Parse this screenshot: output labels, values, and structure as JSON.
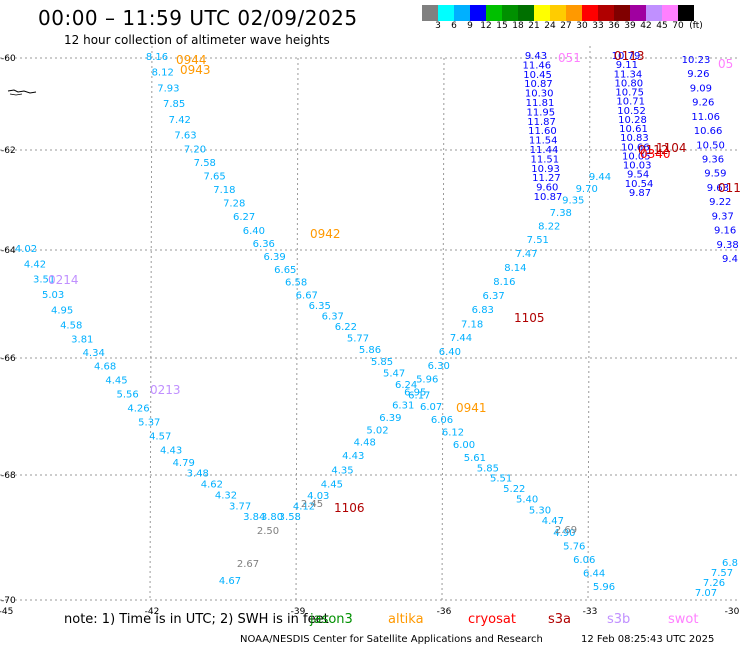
{
  "title": "00:00 – 11:59 UTC 02/09/2025",
  "subtitle": "12 hour collection of altimeter wave heights",
  "colorbar": {
    "unit": "(ft)",
    "colors": [
      "#808080",
      "#00ffff",
      "#00b0ff",
      "#0000ff",
      "#00c000",
      "#009000",
      "#007000",
      "#ffff00",
      "#ffcc00",
      "#ff9900",
      "#ff0000",
      "#b00000",
      "#800000",
      "#a000a0",
      "#c090ff",
      "#ff80ff",
      "#000000"
    ],
    "labels": [
      "3",
      "6",
      "9",
      "12",
      "15",
      "18",
      "21",
      "24",
      "27",
      "30",
      "33",
      "36",
      "39",
      "42",
      "45",
      "70"
    ]
  },
  "note": "note:  1) Time is in UTC; 2) SWH is in feet",
  "satellites": [
    {
      "name": "jason3",
      "color": "#009000"
    },
    {
      "name": "altika",
      "color": "#ff9900"
    },
    {
      "name": "cryosat",
      "color": "#ff0000"
    },
    {
      "name": "s3a",
      "color": "#b00000"
    },
    {
      "name": "s3b",
      "color": "#c090ff"
    },
    {
      "name": "swot",
      "color": "#ff80ff"
    }
  ],
  "footer": "NOAA/NESDIS Center for Satellite Applications and Research",
  "generated": "12 Feb 08:25:43 UTC 2025",
  "map": {
    "lon_labels": [
      "-45",
      "-42",
      "-39",
      "-36",
      "-33",
      "-30"
    ],
    "lat_labels": [
      "-60",
      "-62",
      "-64",
      "-66",
      "-68",
      "-70"
    ],
    "lon_range": [
      -45,
      -30
    ],
    "lat_range": [
      -60,
      -70
    ]
  },
  "time_labels": [
    {
      "text": "0944",
      "color": "#ff9900"
    },
    {
      "text": "0943",
      "color": "#ff9900"
    },
    {
      "text": "0942",
      "color": "#ff9900"
    },
    {
      "text": "0941",
      "color": "#ff9900"
    },
    {
      "text": "0214",
      "color": "#c090ff"
    },
    {
      "text": "0213",
      "color": "#c090ff"
    },
    {
      "text": "1105",
      "color": "#b00000"
    },
    {
      "text": "1106",
      "color": "#b00000"
    },
    {
      "text": "0113",
      "color": "#b00000"
    },
    {
      "text": "0112",
      "color": "#b00000"
    },
    {
      "text": "011",
      "color": "#b00000"
    },
    {
      "text": "0340",
      "color": "#ff0000"
    },
    {
      "text": "1104",
      "color": "#b00000"
    },
    {
      "text": "051",
      "color": "#ff80ff"
    },
    {
      "text": "05",
      "color": "#ff80ff"
    }
  ],
  "tracks": [
    {
      "color": "#00b0ff",
      "values": [
        "8.16",
        "8.12",
        "7.93",
        "7.85",
        "7.42",
        "7.63",
        "7.20",
        "7.58",
        "7.65",
        "7.18",
        "7.28",
        "6.27",
        "6.40",
        "6.36",
        "6.39",
        "6.65",
        "6.58",
        "6.67",
        "6.35",
        "6.37",
        "6.22",
        "5.77",
        "5.86",
        "5.85",
        "5.47",
        "6.24",
        "6.17",
        "6.07",
        "6.06",
        "6.12",
        "6.00",
        "5.61",
        "5.85",
        "5.51",
        "5.22",
        "5.40",
        "5.30",
        "4.47",
        "4.90",
        "5.76",
        "6.06",
        "6.44",
        "5.96"
      ]
    },
    {
      "color": "#00b0ff",
      "values": [
        "4.02",
        "4.42",
        "3.51",
        "5.03",
        "4.95",
        "4.58",
        "3.81",
        "4.34",
        "4.68",
        "4.45",
        "5.56",
        "4.26",
        "5.37",
        "4.57",
        "4.43",
        "4.79",
        "3.48",
        "4.62",
        "4.32",
        "3.77",
        "3.84",
        "3.80",
        "3.58",
        "4.12",
        "4.03",
        "4.45",
        "4.35",
        "4.43",
        "4.48",
        "5.02",
        "6.39",
        "6.31",
        "6.95",
        "5.96",
        "6.30",
        "6.40",
        "7.44",
        "7.18",
        "6.83",
        "6.37",
        "8.16",
        "8.14",
        "7.47",
        "7.51",
        "8.22",
        "7.38",
        "9.35",
        "9.70",
        "9.44"
      ]
    },
    {
      "color": "#00b0ff",
      "values": [
        "7.07",
        "7.26",
        "7.57",
        "6.8"
      ]
    },
    {
      "color": "#00b0ff",
      "values": [
        "4.67"
      ]
    },
    {
      "color": "#808080",
      "values": [
        "2.45",
        "2.50",
        "2.67",
        "2.69"
      ]
    },
    {
      "color": "#0000ff",
      "values": [
        "9.43",
        "11.46",
        "10.45",
        "10.87",
        "10.30",
        "11.81",
        "11.95",
        "11.87",
        "11.60",
        "11.54",
        "11.44",
        "11.51",
        "10.93",
        "11.27",
        "9.60",
        "10.87",
        "10.79",
        "9.11",
        "11.34",
        "10.80",
        "10.75",
        "10.71",
        "10.52",
        "10.28",
        "10.61",
        "10.83",
        "10.66",
        "10.05",
        "10.03",
        "9.54",
        "10.54",
        "9.87",
        "10.23",
        "9.26",
        "9.09",
        "9.26",
        "11.06",
        "10.66",
        "10.50",
        "9.36",
        "9.59",
        "9.63",
        "9.22",
        "9.37",
        "9.16",
        "9.38",
        "9.4"
      ]
    }
  ]
}
